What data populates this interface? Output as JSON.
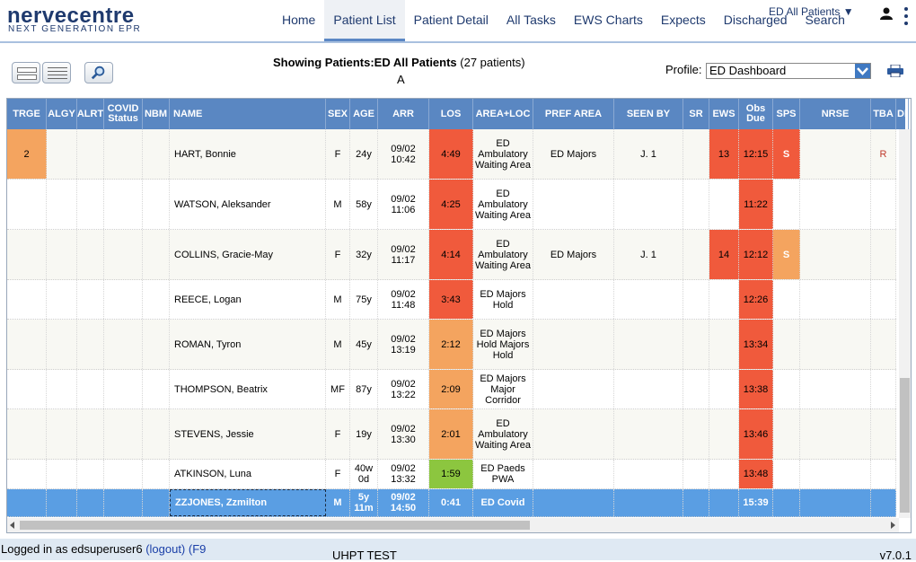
{
  "header": {
    "logo_main": "nervecentre",
    "logo_sub": "NEXT GENERATION EPR",
    "nav": [
      "Home",
      "Patient List",
      "Patient Detail",
      "All Tasks",
      "EWS Charts",
      "Expects",
      "Discharged",
      "Search"
    ],
    "active_nav": "Patient List",
    "ward_select": "ED All Patients ▼"
  },
  "toolbar": {
    "showing_label": "Showing Patients:",
    "showing_list": "ED All Patients",
    "showing_count": "(27 patients)",
    "showing_sub": "A",
    "profile_label": "Profile:",
    "profile_value": "ED Dashboard"
  },
  "columns": [
    "TRGE",
    "ALGY",
    "ALRT",
    "COVID Status",
    "NBM",
    "NAME",
    "SEX",
    "AGE",
    "ARR",
    "LOS",
    "AREA+LOC",
    "PREF AREA",
    "SEEN BY",
    "SR",
    "EWS",
    "Obs Due",
    "SPS",
    "NRSE",
    "TBA",
    "DI"
  ],
  "rows": [
    {
      "trge": "2",
      "name": "HART, Bonnie",
      "sex": "F",
      "age": "24y",
      "arr": "09/02 10:42",
      "los": "4:49",
      "area": "ED Ambulatory Waiting Area",
      "pref": "ED Majors",
      "seen": "J. 1",
      "sr": "",
      "ews": "13",
      "obs": "12:15",
      "sps": "S",
      "nrse": "",
      "tba": "R"
    },
    {
      "trge": "",
      "name": "WATSON, Aleksander",
      "sex": "M",
      "age": "58y",
      "arr": "09/02 11:06",
      "los": "4:25",
      "area": "ED Ambulatory Waiting Area",
      "pref": "",
      "seen": "",
      "sr": "",
      "ews": "",
      "obs": "11:22",
      "sps": "",
      "nrse": "",
      "tba": ""
    },
    {
      "trge": "",
      "name": "COLLINS, Gracie-May",
      "sex": "F",
      "age": "32y",
      "arr": "09/02 11:17",
      "los": "4:14",
      "area": "ED Ambulatory Waiting Area",
      "pref": "ED Majors",
      "seen": "J. 1",
      "sr": "",
      "ews": "14",
      "obs": "12:12",
      "sps": "S",
      "nrse": "",
      "tba": ""
    },
    {
      "trge": "",
      "name": "REECE, Logan",
      "sex": "M",
      "age": "75y",
      "arr": "09/02 11:48",
      "los": "3:43",
      "area": "ED Majors Hold",
      "pref": "",
      "seen": "",
      "sr": "",
      "ews": "",
      "obs": "12:26",
      "sps": "",
      "nrse": "",
      "tba": ""
    },
    {
      "trge": "",
      "name": "ROMAN, Tyron",
      "sex": "M",
      "age": "45y",
      "arr": "09/02 13:19",
      "los": "2:12",
      "area": "ED Majors Hold Majors Hold",
      "pref": "",
      "seen": "",
      "sr": "",
      "ews": "",
      "obs": "13:34",
      "sps": "",
      "nrse": "",
      "tba": ""
    },
    {
      "trge": "",
      "name": "THOMPSON, Beatrix",
      "sex": "MF",
      "age": "87y",
      "arr": "09/02 13:22",
      "los": "2:09",
      "area": "ED Majors Major Corridor",
      "pref": "",
      "seen": "",
      "sr": "",
      "ews": "",
      "obs": "13:38",
      "sps": "",
      "nrse": "",
      "tba": ""
    },
    {
      "trge": "",
      "name": "STEVENS, Jessie",
      "sex": "F",
      "age": "19y",
      "arr": "09/02 13:30",
      "los": "2:01",
      "area": "ED Ambulatory Waiting Area",
      "pref": "",
      "seen": "",
      "sr": "",
      "ews": "",
      "obs": "13:46",
      "sps": "",
      "nrse": "",
      "tba": ""
    },
    {
      "trge": "",
      "name": "ATKINSON, Luna",
      "sex": "F",
      "age": "40w 0d",
      "arr": "09/02 13:32",
      "los": "1:59",
      "area": "ED Paeds PWA",
      "pref": "",
      "seen": "",
      "sr": "",
      "ews": "",
      "obs": "13:48",
      "sps": "",
      "nrse": "",
      "tba": ""
    },
    {
      "trge": "",
      "name": "ZZJONES, Zzmilton",
      "sex": "M",
      "age": "5y 11m",
      "arr": "09/02 14:50",
      "los": "0:41",
      "area": "ED Covid",
      "pref": "",
      "seen": "",
      "sr": "",
      "ews": "",
      "obs": "15:39",
      "sps": "",
      "nrse": "",
      "tba": ""
    }
  ],
  "colors": {
    "header_blue": "#5a87c2",
    "red": "#f05a3c",
    "orange": "#f4a45f",
    "green": "#8cc63f",
    "selected": "#5a9ee3"
  },
  "footer": {
    "login_text": "Logged in as edsuperuser6",
    "logout": "(logout)",
    "f9": "(F9",
    "environment": "UHPT TEST",
    "version": "v7.0.1"
  }
}
